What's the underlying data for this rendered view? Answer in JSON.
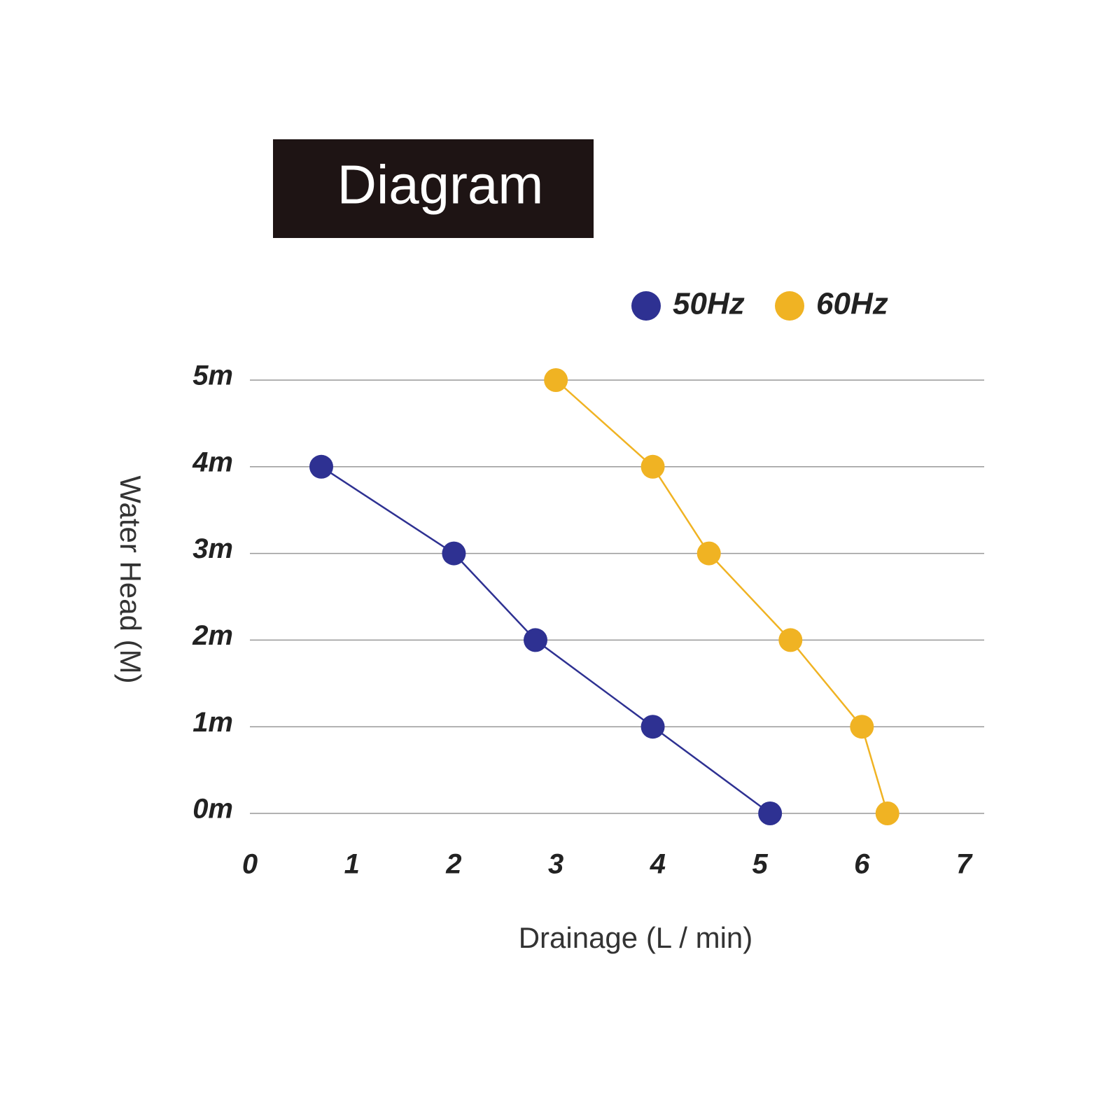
{
  "chart_data": {
    "type": "line",
    "title": "Diagram",
    "x_label": "Drainage (L / min)",
    "y_label": "Water Head (M)",
    "xlim": [
      0,
      7
    ],
    "xticks": [
      0,
      1,
      2,
      3,
      4,
      5,
      6,
      7
    ],
    "ylim": [
      0,
      5
    ],
    "yticks": [
      {
        "value": 0,
        "label": "0m"
      },
      {
        "value": 1,
        "label": "1m"
      },
      {
        "value": 2,
        "label": "2m"
      },
      {
        "value": 3,
        "label": "3m"
      },
      {
        "value": 4,
        "label": "4m"
      },
      {
        "value": 5,
        "label": "5m"
      }
    ],
    "grid": true,
    "legend": "top-right",
    "series": [
      {
        "name": "50Hz",
        "color": "#2e3192",
        "x": [
          0.7,
          2.0,
          2.8,
          3.95,
          5.1
        ],
        "values": [
          4,
          3,
          2,
          1,
          0
        ]
      },
      {
        "name": "60Hz",
        "color": "#f0b323",
        "x": [
          3.0,
          3.95,
          4.5,
          5.3,
          6.0,
          6.25
        ],
        "values": [
          5,
          4,
          3,
          2,
          1,
          0
        ]
      }
    ]
  }
}
